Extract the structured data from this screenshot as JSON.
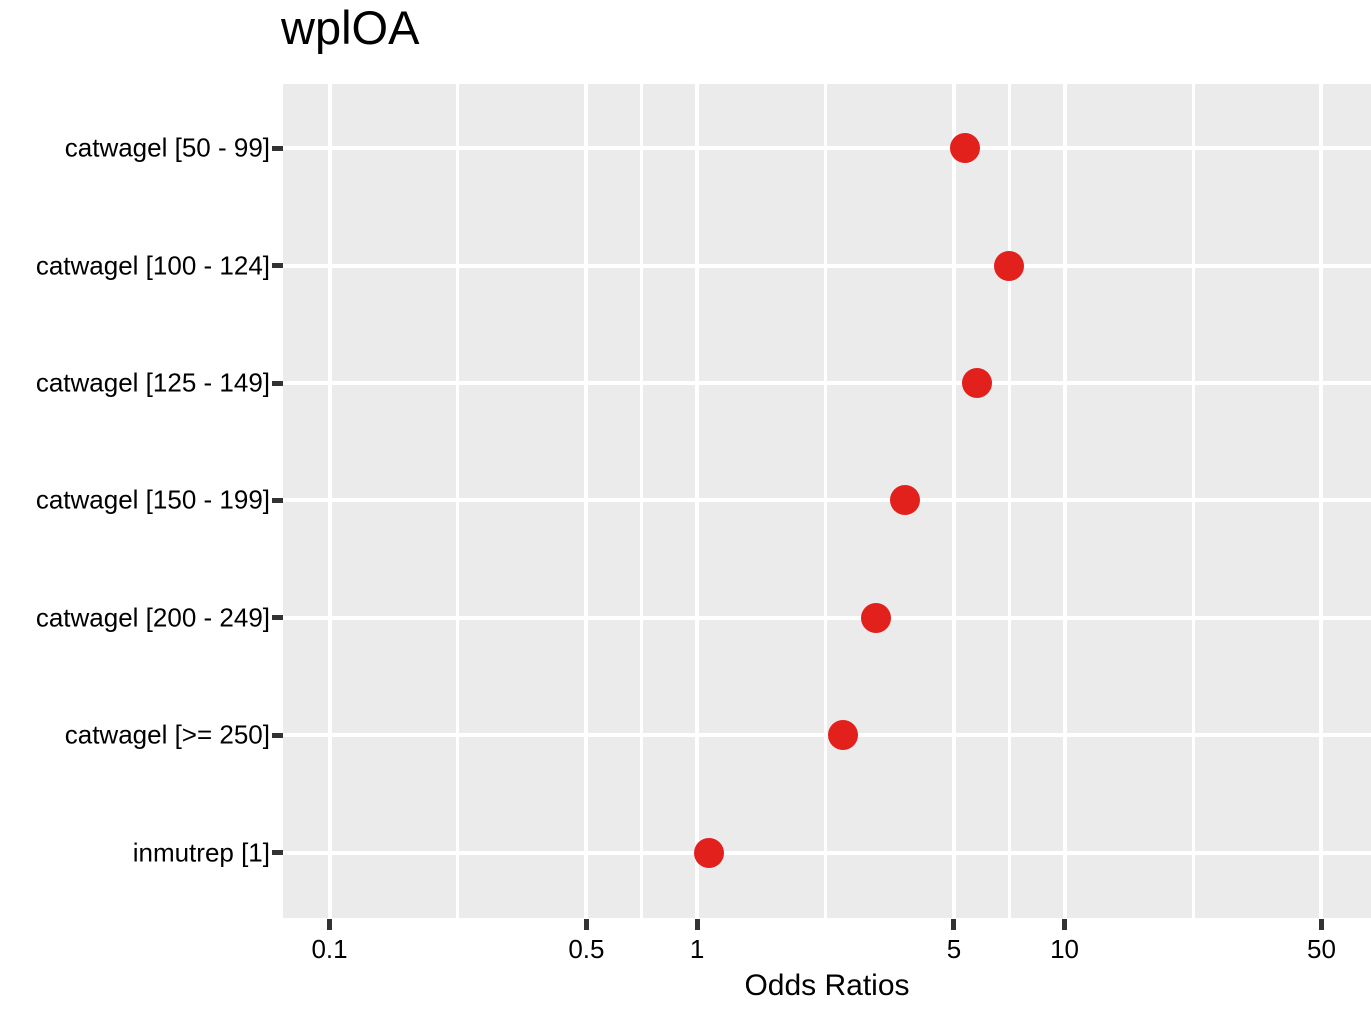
{
  "chart_data": {
    "type": "scatter",
    "title": "wplOA",
    "xlabel": "Odds Ratios",
    "ylabel": "",
    "x_scale": "log10",
    "xlim": [
      0.0747,
      68.2
    ],
    "x_breaks": [
      0.1,
      0.5,
      1,
      5,
      10,
      50
    ],
    "x_tick_labels": [
      "0.1",
      "0.5",
      "1",
      "5",
      "10",
      "50"
    ],
    "x_minor_breaks": [
      0.2236,
      0.7071,
      2.2361,
      7.0711,
      22.3607
    ],
    "categories": [
      "catwagel [50 - 99]",
      "catwagel [100 - 124]",
      "catwagel [125 - 149]",
      "catwagel [150 - 199]",
      "catwagel [200 - 249]",
      "catwagel [>= 250]",
      "inmutrep [1]"
    ],
    "values": [
      5.36,
      7.06,
      5.78,
      3.68,
      3.07,
      2.5,
      1.08
    ],
    "legend_position": "none",
    "grid": true,
    "colors": {
      "point": "#e2201c",
      "panel_bg": "#ebebeb",
      "grid": "#ffffff",
      "tick": "#333333",
      "text": "#000000"
    }
  }
}
